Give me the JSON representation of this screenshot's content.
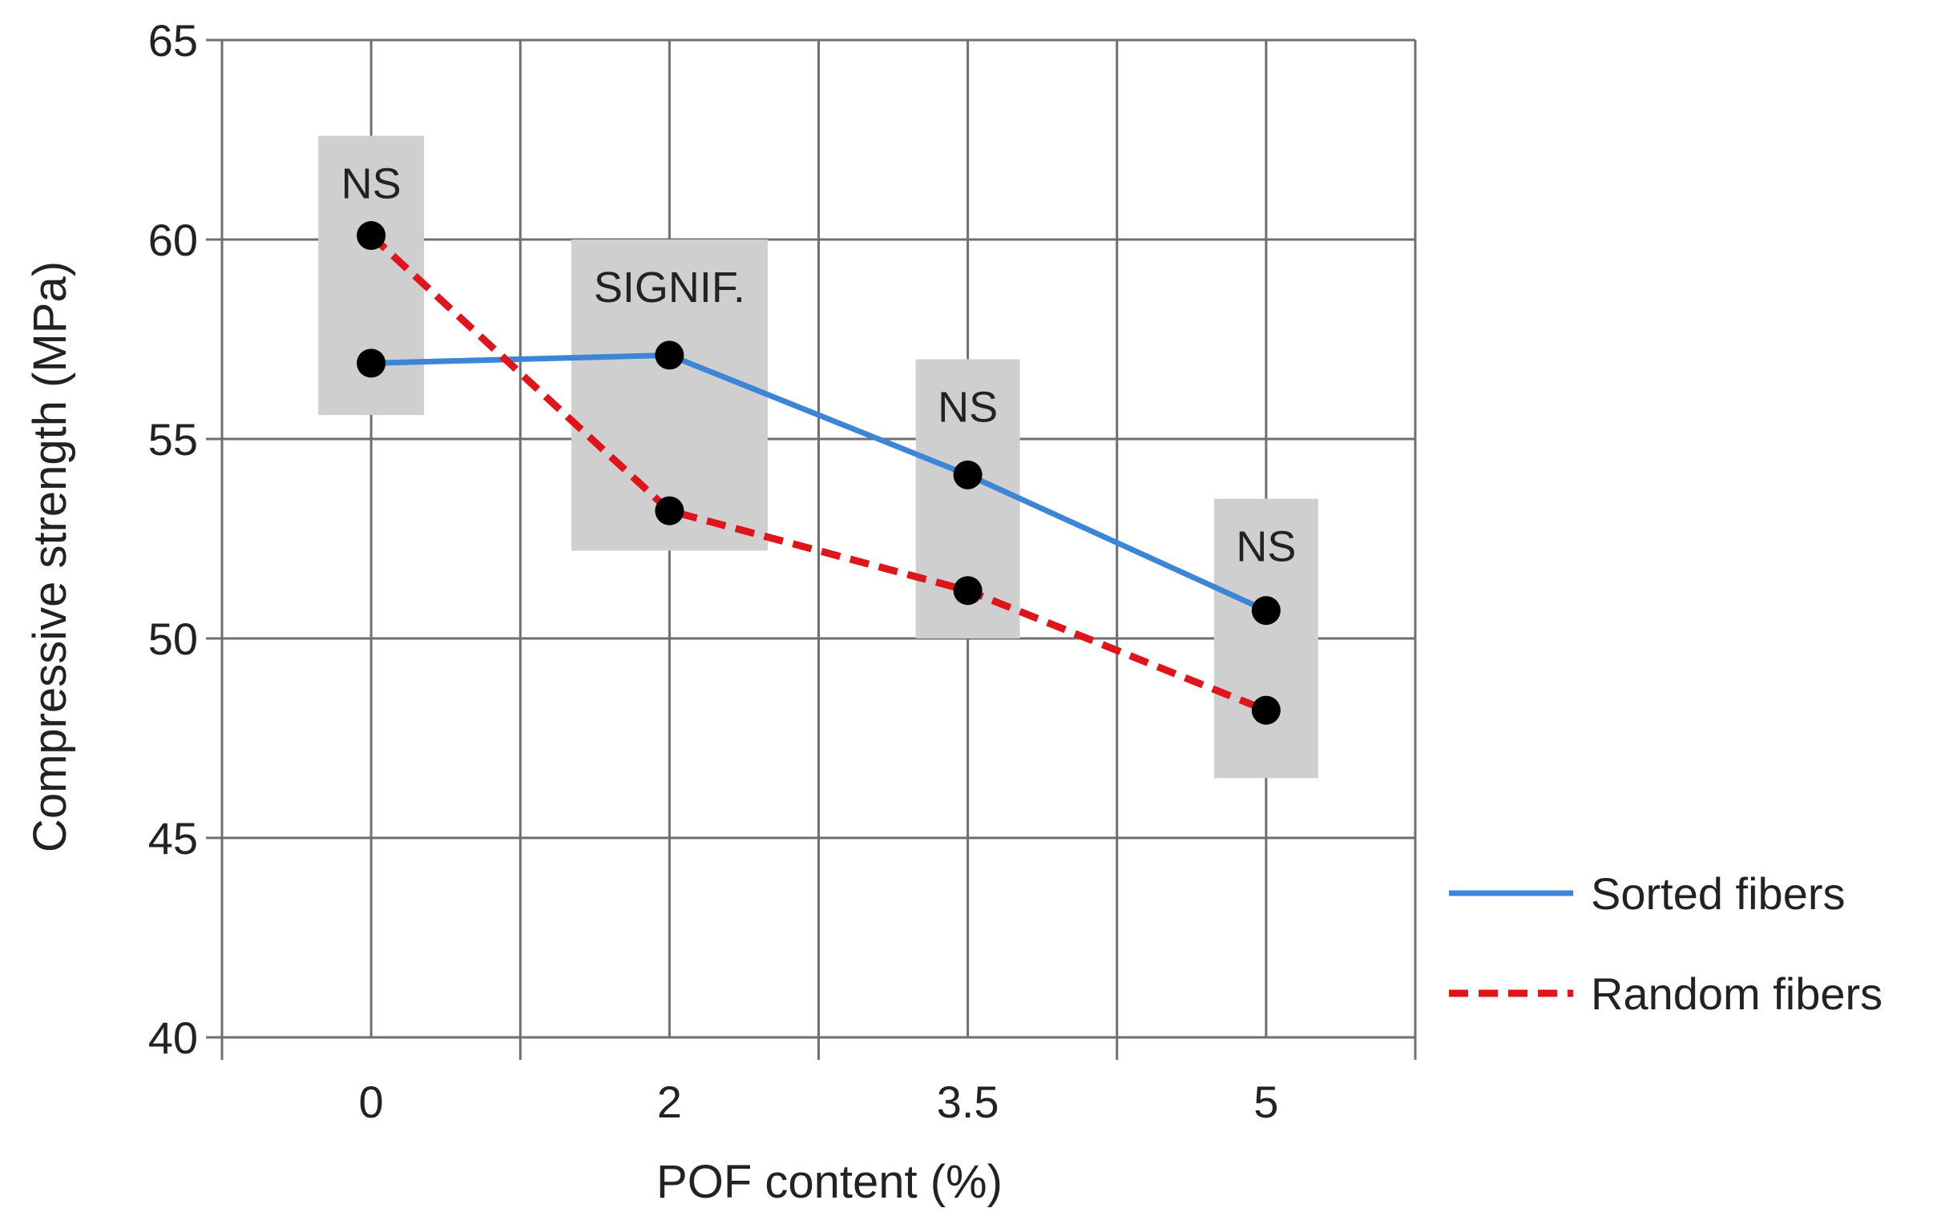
{
  "chart_data": {
    "type": "line",
    "categories": [
      "0",
      "2",
      "3.5",
      "5"
    ],
    "xlabel": "POF content (%)",
    "ylabel": "Compressive strength (MPa)",
    "ylim": [
      40,
      65
    ],
    "yticks": [
      40,
      45,
      50,
      55,
      60,
      65
    ],
    "grid": true,
    "legend_position": "right",
    "series": [
      {
        "name": "Sorted fibers",
        "values": [
          56.9,
          57.1,
          54.1,
          50.7
        ],
        "color": "#3d85d6",
        "style": "solid"
      },
      {
        "name": "Random fibers",
        "values": [
          60.1,
          53.2,
          51.2,
          48.2
        ],
        "color": "#e0151b",
        "style": "dashed"
      }
    ],
    "annotations": [
      {
        "category": "0",
        "text": "NS",
        "range": [
          55.6,
          62.6
        ]
      },
      {
        "category": "2",
        "text": "SIGNIF.",
        "range": [
          52.2,
          60.0
        ]
      },
      {
        "category": "3.5",
        "text": "NS",
        "range": [
          50.0,
          57.0
        ]
      },
      {
        "category": "5",
        "text": "NS",
        "range": [
          46.5,
          53.5
        ]
      }
    ]
  }
}
